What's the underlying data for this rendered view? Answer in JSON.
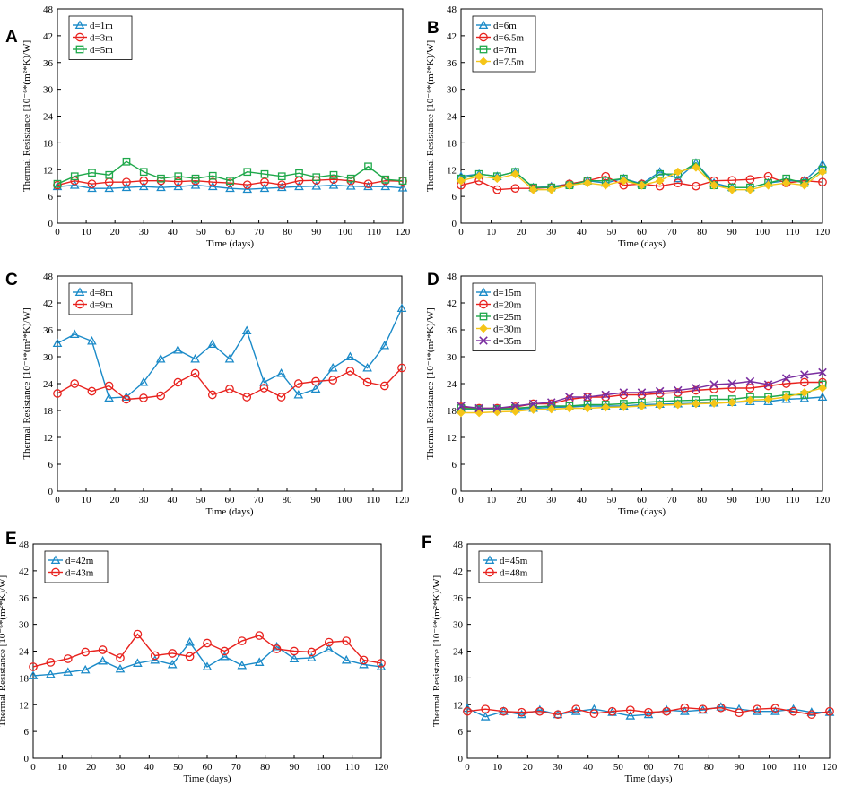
{
  "figure": {
    "x_axis_label": "Time (days)",
    "y_axis_label": "Thermal Resistance [10⁻⁶*(m²*K)/W]"
  },
  "series_colors": {
    "blue": "#1a8ac8",
    "red": "#e8221e",
    "green": "#1ea84a",
    "yellow": "#f5c518",
    "purple": "#7a2ea0"
  },
  "chart_data": [
    {
      "panel": "A",
      "type": "line",
      "xlabel": "Time (days)",
      "ylabel": "Thermal Resistance [10⁻⁶*(m²*K)/W]",
      "xlim": [
        0,
        120
      ],
      "ylim": [
        0,
        48
      ],
      "xticks": [
        0,
        10,
        20,
        30,
        40,
        50,
        60,
        70,
        80,
        90,
        100,
        110,
        120
      ],
      "yticks": [
        0,
        6,
        12,
        18,
        24,
        30,
        36,
        42,
        48
      ],
      "legend_position": "top-left",
      "x": [
        0,
        6,
        12,
        18,
        24,
        30,
        36,
        42,
        48,
        54,
        60,
        66,
        72,
        78,
        84,
        90,
        96,
        102,
        108,
        114,
        120
      ],
      "series": [
        {
          "name": "d=1m",
          "color": "blue",
          "marker": "triangle",
          "values": [
            8.2,
            8.5,
            7.8,
            7.8,
            8.0,
            8.2,
            8.0,
            8.2,
            8.5,
            8.2,
            7.8,
            7.6,
            7.8,
            8.0,
            8.2,
            8.3,
            8.5,
            8.3,
            8.2,
            8.2,
            7.9
          ]
        },
        {
          "name": "d=3m",
          "color": "red",
          "marker": "circle",
          "values": [
            8.5,
            9.5,
            8.8,
            9.2,
            9.2,
            9.5,
            9.5,
            9.3,
            9.5,
            9.2,
            9.0,
            8.6,
            9.2,
            8.6,
            9.5,
            9.6,
            9.8,
            9.5,
            8.8,
            9.5,
            9.4
          ]
        },
        {
          "name": "d=5m",
          "color": "green",
          "marker": "square",
          "values": [
            8.8,
            10.5,
            11.3,
            10.8,
            13.8,
            11.5,
            10.0,
            10.5,
            10.0,
            10.6,
            9.5,
            11.5,
            11.0,
            10.5,
            11.2,
            10.3,
            10.8,
            10.0,
            12.7,
            9.8,
            9.5
          ]
        }
      ]
    },
    {
      "panel": "B",
      "type": "line",
      "xlabel": "Time (days)",
      "ylabel": "Thermal Resistance [10⁻⁶*(m²*K)/W]",
      "xlim": [
        0,
        120
      ],
      "ylim": [
        0,
        48
      ],
      "xticks": [
        0,
        10,
        20,
        30,
        40,
        50,
        60,
        70,
        80,
        90,
        100,
        110,
        120
      ],
      "yticks": [
        0,
        6,
        12,
        18,
        24,
        30,
        36,
        42,
        48
      ],
      "legend_position": "top-left",
      "x": [
        0,
        6,
        12,
        18,
        24,
        30,
        36,
        42,
        48,
        54,
        60,
        66,
        72,
        78,
        84,
        90,
        96,
        102,
        108,
        114,
        120
      ],
      "series": [
        {
          "name": "d=6m",
          "color": "blue",
          "marker": "triangle",
          "values": [
            10.5,
            11.0,
            10.5,
            11.5,
            8.0,
            8.2,
            8.8,
            9.5,
            9.0,
            10.0,
            8.8,
            11.5,
            10.0,
            13.5,
            9.0,
            8.0,
            8.0,
            9.0,
            9.5,
            9.5,
            13.2
          ]
        },
        {
          "name": "d=6.5m",
          "color": "red",
          "marker": "circle",
          "values": [
            8.5,
            9.5,
            7.5,
            7.8,
            7.8,
            8.0,
            8.8,
            9.5,
            10.5,
            8.5,
            8.8,
            8.3,
            9.0,
            8.3,
            9.5,
            9.6,
            9.8,
            10.5,
            9.0,
            9.5,
            9.2
          ]
        },
        {
          "name": "d=7m",
          "color": "green",
          "marker": "square",
          "values": [
            10.0,
            11.0,
            10.5,
            11.5,
            8.0,
            8.0,
            8.5,
            9.5,
            9.5,
            10.0,
            8.5,
            11.0,
            11.0,
            13.5,
            8.5,
            8.0,
            8.0,
            9.0,
            10.0,
            9.0,
            12.0
          ]
        },
        {
          "name": "d=7.5m",
          "color": "yellow",
          "marker": "diamond",
          "values": [
            9.5,
            10.5,
            10.0,
            11.0,
            7.5,
            7.5,
            8.5,
            9.0,
            8.5,
            9.5,
            8.5,
            9.5,
            11.5,
            12.5,
            8.5,
            7.5,
            7.5,
            8.5,
            9.0,
            8.5,
            11.5
          ]
        }
      ]
    },
    {
      "panel": "C",
      "type": "line",
      "xlabel": "Time (days)",
      "ylabel": "Thermal Resistance [10⁻⁶*(m²*K)/W]",
      "xlim": [
        0,
        120
      ],
      "ylim": [
        0,
        48
      ],
      "xticks": [
        0,
        10,
        20,
        30,
        40,
        50,
        60,
        70,
        80,
        90,
        100,
        110,
        120
      ],
      "yticks": [
        0,
        6,
        12,
        18,
        24,
        30,
        36,
        42,
        48
      ],
      "legend_position": "top-left",
      "x": [
        0,
        6,
        12,
        18,
        24,
        30,
        36,
        42,
        48,
        54,
        60,
        66,
        72,
        78,
        84,
        90,
        96,
        102,
        108,
        114,
        120
      ],
      "series": [
        {
          "name": "d=8m",
          "color": "blue",
          "marker": "triangle",
          "values": [
            33.0,
            35.0,
            33.5,
            20.8,
            21.0,
            24.3,
            29.5,
            31.5,
            29.5,
            32.8,
            29.5,
            35.8,
            24.3,
            26.3,
            21.5,
            22.8,
            27.5,
            30.0,
            27.5,
            32.5,
            40.8
          ]
        },
        {
          "name": "d=9m",
          "color": "red",
          "marker": "circle",
          "values": [
            21.8,
            24.0,
            22.3,
            23.5,
            20.5,
            20.8,
            21.3,
            24.3,
            26.3,
            21.5,
            22.8,
            21.0,
            23.0,
            21.0,
            24.0,
            24.5,
            24.8,
            26.8,
            24.3,
            23.5,
            27.5
          ]
        }
      ]
    },
    {
      "panel": "D",
      "type": "line",
      "xlabel": "Time (days)",
      "ylabel": "Thermal Resistance [10⁻⁶*(m²*K)/W]",
      "xlim": [
        0,
        120
      ],
      "ylim": [
        0,
        48
      ],
      "xticks": [
        0,
        10,
        20,
        30,
        40,
        50,
        60,
        70,
        80,
        90,
        100,
        110,
        120
      ],
      "yticks": [
        0,
        6,
        12,
        18,
        24,
        30,
        36,
        42,
        48
      ],
      "legend_position": "top-left",
      "x": [
        0,
        6,
        12,
        18,
        24,
        30,
        36,
        42,
        48,
        54,
        60,
        66,
        72,
        78,
        84,
        90,
        96,
        102,
        108,
        114,
        120
      ],
      "series": [
        {
          "name": "d=15m",
          "color": "blue",
          "marker": "triangle",
          "values": [
            18.3,
            18.2,
            18.3,
            18.3,
            18.5,
            18.7,
            18.8,
            19.0,
            19.0,
            19.0,
            19.3,
            19.4,
            19.5,
            19.6,
            19.7,
            19.8,
            20.0,
            20.0,
            20.5,
            20.7,
            21.0
          ]
        },
        {
          "name": "d=20m",
          "color": "red",
          "marker": "circle",
          "values": [
            18.8,
            18.5,
            18.5,
            18.8,
            19.5,
            19.5,
            20.5,
            21.0,
            21.0,
            21.5,
            21.5,
            21.8,
            22.0,
            22.5,
            22.8,
            23.0,
            23.0,
            23.5,
            24.0,
            24.3,
            24.3
          ]
        },
        {
          "name": "d=25m",
          "color": "green",
          "marker": "square",
          "values": [
            18.5,
            18.3,
            18.3,
            18.5,
            18.8,
            19.0,
            19.0,
            19.3,
            19.3,
            19.5,
            19.8,
            20.0,
            20.2,
            20.3,
            20.5,
            20.5,
            21.0,
            21.0,
            21.5,
            21.5,
            23.8
          ]
        },
        {
          "name": "d=30m",
          "color": "yellow",
          "marker": "diamond",
          "values": [
            17.5,
            17.5,
            17.7,
            17.8,
            18.2,
            18.3,
            18.5,
            18.5,
            18.7,
            18.8,
            19.0,
            19.2,
            19.3,
            19.5,
            19.6,
            19.8,
            20.3,
            20.5,
            21.0,
            22.0,
            23.0
          ]
        },
        {
          "name": "d=35m",
          "color": "purple",
          "marker": "cross",
          "values": [
            19.0,
            18.5,
            18.5,
            19.0,
            19.5,
            19.8,
            21.0,
            21.0,
            21.5,
            22.0,
            22.0,
            22.3,
            22.5,
            23.0,
            23.8,
            24.0,
            24.5,
            23.8,
            25.2,
            26.0,
            26.5
          ]
        }
      ]
    },
    {
      "panel": "E",
      "type": "line",
      "xlabel": "Time (days)",
      "ylabel": "Thermal Resistance [10⁻⁶*(m²*K)/W]",
      "xlim": [
        0,
        120
      ],
      "ylim": [
        0,
        48
      ],
      "xticks": [
        0,
        10,
        20,
        30,
        40,
        50,
        60,
        70,
        80,
        90,
        100,
        110,
        120
      ],
      "yticks": [
        0,
        6,
        12,
        18,
        24,
        30,
        36,
        42,
        48
      ],
      "legend_position": "top-left",
      "x": [
        0,
        6,
        12,
        18,
        24,
        30,
        36,
        42,
        48,
        54,
        60,
        66,
        72,
        78,
        84,
        90,
        96,
        102,
        108,
        114,
        120
      ],
      "series": [
        {
          "name": "d=42m",
          "color": "blue",
          "marker": "triangle",
          "values": [
            18.5,
            18.8,
            19.3,
            19.8,
            21.8,
            20.0,
            21.3,
            22.0,
            21.0,
            26.0,
            20.5,
            22.8,
            20.8,
            21.5,
            25.0,
            22.3,
            22.5,
            24.5,
            22.0,
            21.0,
            20.5
          ]
        },
        {
          "name": "d=43m",
          "color": "red",
          "marker": "circle",
          "values": [
            20.5,
            21.5,
            22.3,
            23.8,
            24.3,
            22.5,
            27.8,
            23.0,
            23.5,
            22.8,
            25.8,
            24.0,
            26.3,
            27.5,
            24.5,
            24.0,
            23.8,
            26.0,
            26.3,
            22.0,
            21.3
          ]
        }
      ]
    },
    {
      "panel": "F",
      "type": "line",
      "xlabel": "Time (days)",
      "ylabel": "Thermal Resistance [10⁻⁶*(m²*K)/W]",
      "xlim": [
        0,
        120
      ],
      "ylim": [
        0,
        48
      ],
      "xticks": [
        0,
        10,
        20,
        30,
        40,
        50,
        60,
        70,
        80,
        90,
        100,
        110,
        120
      ],
      "yticks": [
        0,
        6,
        12,
        18,
        24,
        30,
        36,
        42,
        48
      ],
      "legend_position": "top-left",
      "x": [
        0,
        6,
        12,
        18,
        24,
        30,
        36,
        42,
        48,
        54,
        60,
        66,
        72,
        78,
        84,
        90,
        96,
        102,
        108,
        114,
        120
      ],
      "series": [
        {
          "name": "d=45m",
          "color": "blue",
          "marker": "triangle",
          "values": [
            11.2,
            9.3,
            10.5,
            9.8,
            10.8,
            9.8,
            10.5,
            11.0,
            10.3,
            9.5,
            9.8,
            10.8,
            10.5,
            10.8,
            11.5,
            11.0,
            10.5,
            10.5,
            11.0,
            10.3,
            10.3
          ]
        },
        {
          "name": "d=48m",
          "color": "red",
          "marker": "circle",
          "values": [
            10.5,
            11.0,
            10.5,
            10.3,
            10.5,
            9.8,
            11.0,
            10.0,
            10.5,
            10.8,
            10.3,
            10.5,
            11.3,
            11.0,
            11.3,
            10.2,
            11.0,
            11.2,
            10.5,
            9.8,
            10.5
          ]
        }
      ]
    }
  ]
}
